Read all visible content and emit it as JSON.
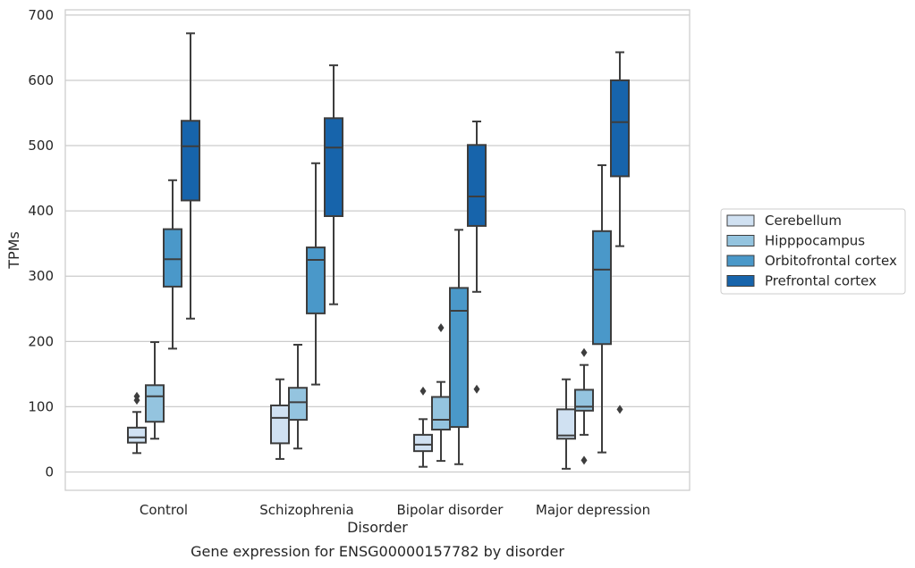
{
  "chart_data": {
    "type": "boxplot",
    "title": "",
    "caption": "Gene expression for ENSG00000157782 by disorder",
    "xlabel": "Disorder",
    "ylabel": "TPMs",
    "ylim": [
      -28,
      708
    ],
    "yticks": [
      0,
      100,
      200,
      300,
      400,
      500,
      600,
      700
    ],
    "grid": true,
    "legend_position": "right",
    "categories": [
      "Control",
      "Schizophrenia",
      "Bipolar disorder",
      "Major depression"
    ],
    "series": [
      {
        "name": "Cerebellum",
        "color": "#d0e1f2",
        "boxes": [
          {
            "whisker_low": 29,
            "q1": 45,
            "median": 53,
            "q3": 68,
            "whisker_high": 92,
            "outliers": [
              110,
              116
            ]
          },
          {
            "whisker_low": 20,
            "q1": 44,
            "median": 83,
            "q3": 102,
            "whisker_high": 142,
            "outliers": []
          },
          {
            "whisker_low": 8,
            "q1": 32,
            "median": 42,
            "q3": 57,
            "whisker_high": 81,
            "outliers": [
              124
            ]
          },
          {
            "whisker_low": 5,
            "q1": 51,
            "median": 56,
            "q3": 96,
            "whisker_high": 142,
            "outliers": []
          }
        ]
      },
      {
        "name": "Hipppocampus",
        "color": "#94c4df",
        "boxes": [
          {
            "whisker_low": 51,
            "q1": 77,
            "median": 116,
            "q3": 133,
            "whisker_high": 199,
            "outliers": []
          },
          {
            "whisker_low": 36,
            "q1": 80,
            "median": 107,
            "q3": 129,
            "whisker_high": 195,
            "outliers": []
          },
          {
            "whisker_low": 17,
            "q1": 65,
            "median": 80,
            "q3": 115,
            "whisker_high": 138,
            "outliers": [
              221
            ]
          },
          {
            "whisker_low": 57,
            "q1": 94,
            "median": 100,
            "q3": 126,
            "whisker_high": 164,
            "outliers": [
              183,
              18
            ]
          }
        ]
      },
      {
        "name": "Orbitofrontal cortex",
        "color": "#4a98c9",
        "boxes": [
          {
            "whisker_low": 189,
            "q1": 284,
            "median": 326,
            "q3": 372,
            "whisker_high": 447,
            "outliers": []
          },
          {
            "whisker_low": 134,
            "q1": 243,
            "median": 325,
            "q3": 344,
            "whisker_high": 473,
            "outliers": []
          },
          {
            "whisker_low": 12,
            "q1": 69,
            "median": 247,
            "q3": 282,
            "whisker_high": 371,
            "outliers": []
          },
          {
            "whisker_low": 30,
            "q1": 196,
            "median": 310,
            "q3": 369,
            "whisker_high": 470,
            "outliers": []
          }
        ]
      },
      {
        "name": "Prefrontal cortex",
        "color": "#1764ab",
        "boxes": [
          {
            "whisker_low": 235,
            "q1": 416,
            "median": 499,
            "q3": 538,
            "whisker_high": 672,
            "outliers": []
          },
          {
            "whisker_low": 257,
            "q1": 392,
            "median": 497,
            "q3": 542,
            "whisker_high": 623,
            "outliers": []
          },
          {
            "whisker_low": 276,
            "q1": 377,
            "median": 422,
            "q3": 501,
            "whisker_high": 537,
            "outliers": [
              127
            ]
          },
          {
            "whisker_low": 346,
            "q1": 453,
            "median": 536,
            "q3": 600,
            "whisker_high": 643,
            "outliers": [
              96
            ]
          }
        ]
      }
    ]
  }
}
